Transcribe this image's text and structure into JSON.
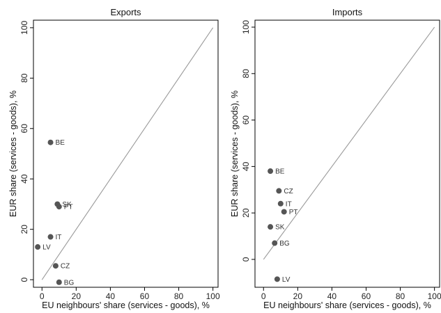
{
  "chart_data": [
    {
      "type": "scatter",
      "title": "Exports",
      "xlabel": "EU neighbours' share (services - goods), %",
      "ylabel": "EUR share (services - goods), %",
      "xlim": [
        -5,
        103
      ],
      "ylim": [
        -3,
        103
      ],
      "xticks": [
        0,
        20,
        40,
        60,
        80,
        100
      ],
      "yticks": [
        0,
        20,
        40,
        60,
        80,
        100
      ],
      "reference_line": [
        [
          0,
          0
        ],
        [
          100,
          100
        ]
      ],
      "grid": false,
      "point_color": "#555555",
      "line_color": "#9a9a9a",
      "points": [
        {
          "label": "BE",
          "x": 5,
          "y": 54.5
        },
        {
          "label": "SK",
          "x": 9,
          "y": 30
        },
        {
          "label": "PT",
          "x": 10,
          "y": 29
        },
        {
          "label": "IT",
          "x": 5,
          "y": 17
        },
        {
          "label": "LV",
          "x": -2.5,
          "y": 13
        },
        {
          "label": "CZ",
          "x": 8,
          "y": 5.5
        },
        {
          "label": "BG",
          "x": 10,
          "y": -1
        }
      ]
    },
    {
      "type": "scatter",
      "title": "Imports",
      "xlabel": "EU neighbours' share (services - goods), %",
      "ylabel": "EUR share (services - goods), %",
      "xlim": [
        -5,
        103
      ],
      "ylim": [
        -12,
        103
      ],
      "xticks": [
        0,
        20,
        40,
        60,
        80,
        100
      ],
      "yticks": [
        0,
        20,
        40,
        60,
        80,
        100
      ],
      "reference_line": [
        [
          0,
          0
        ],
        [
          100,
          100
        ]
      ],
      "grid": false,
      "point_color": "#555555",
      "line_color": "#9a9a9a",
      "points": [
        {
          "label": "BE",
          "x": 4,
          "y": 38
        },
        {
          "label": "CZ",
          "x": 9,
          "y": 29.5
        },
        {
          "label": "IT",
          "x": 10,
          "y": 24
        },
        {
          "label": "PT",
          "x": 12,
          "y": 20.5
        },
        {
          "label": "SK",
          "x": 4,
          "y": 14
        },
        {
          "label": "BG",
          "x": 6.5,
          "y": 7
        },
        {
          "label": "LV",
          "x": 8,
          "y": -8.5
        }
      ]
    }
  ]
}
